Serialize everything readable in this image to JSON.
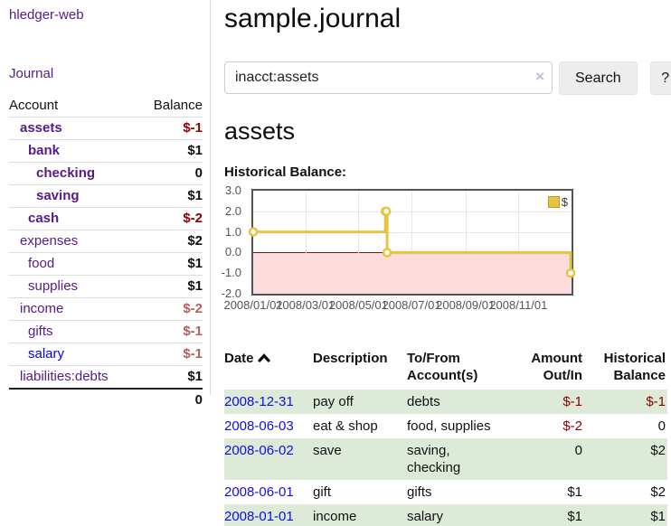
{
  "app": {
    "brand": "hledger-web",
    "nav_journal": "Journal"
  },
  "sidebar": {
    "table": {
      "col_account": "Account",
      "col_balance": "Balance"
    },
    "accounts": [
      {
        "name": "assets",
        "balance": "$-1",
        "depth": 1,
        "bold": true,
        "tone": "neg-strong",
        "link_style": "visited"
      },
      {
        "name": "bank",
        "balance": "$1",
        "depth": 2,
        "bold": true,
        "tone": "plain",
        "link_style": "visited"
      },
      {
        "name": "checking",
        "balance": "0",
        "depth": 3,
        "bold": true,
        "tone": "plain",
        "link_style": "visited"
      },
      {
        "name": "saving",
        "balance": "$1",
        "depth": 3,
        "bold": true,
        "tone": "plain",
        "link_style": "visited"
      },
      {
        "name": "cash",
        "balance": "$-2",
        "depth": 2,
        "bold": true,
        "tone": "neg-strong",
        "link_style": "visited"
      },
      {
        "name": "expenses",
        "balance": "$2",
        "depth": 1,
        "bold": false,
        "tone": "plain",
        "link_style": "visited"
      },
      {
        "name": "food",
        "balance": "$1",
        "depth": 2,
        "bold": false,
        "tone": "plain",
        "link_style": "visited"
      },
      {
        "name": "supplies",
        "balance": "$1",
        "depth": 2,
        "bold": false,
        "tone": "plain",
        "link_style": "visited"
      },
      {
        "name": "income",
        "balance": "$-2",
        "depth": 1,
        "bold": false,
        "tone": "neg-soft",
        "link_style": "visited"
      },
      {
        "name": "gifts",
        "balance": "$-1",
        "depth": 2,
        "bold": false,
        "tone": "neg-soft",
        "link_style": "visited"
      },
      {
        "name": "salary",
        "balance": "$-1",
        "depth": 2,
        "bold": false,
        "tone": "neg-soft",
        "link_style": "unvisited"
      },
      {
        "name": "liabilities:debts",
        "balance": "$1",
        "depth": 1,
        "bold": false,
        "tone": "plain",
        "link_style": "visited"
      }
    ],
    "total": "0"
  },
  "main": {
    "title": "sample.journal",
    "search": {
      "value": "inacct:assets",
      "clear_icon": "×",
      "button_label": "Search",
      "help_label": "?"
    },
    "account_heading": "assets",
    "chart_label": "Historical Balance:"
  },
  "chart_data": {
    "type": "line",
    "style": "step",
    "title": "Historical Balance:",
    "series": [
      {
        "name": "$",
        "color": "#E8C240",
        "points": [
          {
            "date": "2008-01-01",
            "value": 1
          },
          {
            "date": "2008-06-01",
            "value": 2
          },
          {
            "date": "2008-06-02",
            "value": 2
          },
          {
            "date": "2008-06-03",
            "value": 0
          },
          {
            "date": "2008-12-31",
            "value": -1
          }
        ]
      }
    ],
    "x_range": [
      "2008-01-01",
      "2009-01-01"
    ],
    "ylim": [
      -2,
      3
    ],
    "y_ticks": [
      3,
      2,
      1,
      0,
      -1,
      -2
    ],
    "y_tick_labels": [
      "3.0",
      "2.0",
      "1.0",
      "0.0",
      "-1.0",
      "-2.0"
    ],
    "x_ticks": [
      "2008-01-01",
      "2008-03-01",
      "2008-05-01",
      "2008-07-01",
      "2008-09-01",
      "2008-11-01"
    ],
    "x_tick_labels": [
      "2008/01/01",
      "2008/03/01",
      "2008/05/01",
      "2008/07/01",
      "2008/09/01",
      "2008/11/01"
    ],
    "grid": true,
    "legend_position": "top-right",
    "negative_region_color": "#fbdbdb",
    "zero_line_color": "#8b0f0f"
  },
  "register": {
    "headers": {
      "date": "Date",
      "description": "Description",
      "accounts": "To/From Account(s)",
      "amount": "Amount Out/In",
      "balance": "Historical Balance"
    },
    "rows": [
      {
        "date": "2008-12-31",
        "description": "pay off",
        "accounts": "debts",
        "amount": "$-1",
        "amount_neg": true,
        "balance": "$-1",
        "balance_neg": true
      },
      {
        "date": "2008-06-03",
        "description": "eat & shop",
        "accounts": "food, supplies",
        "amount": "$-2",
        "amount_neg": true,
        "balance": "0",
        "balance_neg": false
      },
      {
        "date": "2008-06-02",
        "description": "save",
        "accounts": "saving, checking",
        "amount": "0",
        "amount_neg": false,
        "balance": "$2",
        "balance_neg": false
      },
      {
        "date": "2008-06-01",
        "description": "gift",
        "accounts": "gifts",
        "amount": "$1",
        "amount_neg": false,
        "balance": "$2",
        "balance_neg": false
      },
      {
        "date": "2008-01-01",
        "description": "income",
        "accounts": "salary",
        "amount": "$1",
        "amount_neg": false,
        "balance": "$1",
        "balance_neg": false
      }
    ]
  }
}
